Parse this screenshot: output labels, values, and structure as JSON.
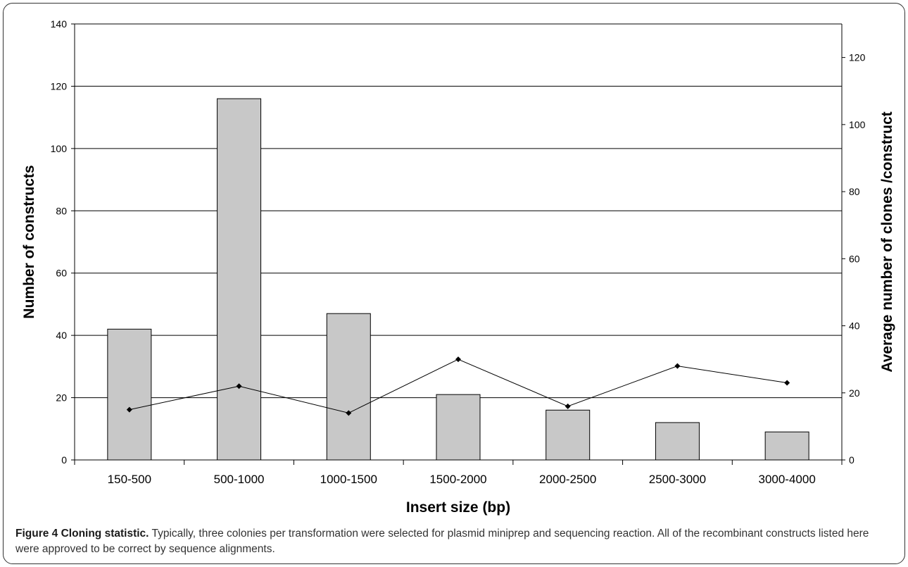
{
  "chart_data": {
    "type": "bar",
    "categories": [
      "150-500",
      "500-1000",
      "1000-1500",
      "1500-2000",
      "2000-2500",
      "2500-3000",
      "3000-4000"
    ],
    "series": [
      {
        "values": [
          42,
          116,
          47,
          21,
          16,
          12,
          9
        ],
        "axis": "left",
        "kind": "bar",
        "color": "#c8c8c8"
      },
      {
        "values": [
          15,
          22,
          14,
          30,
          16,
          28,
          23
        ],
        "axis": "right",
        "kind": "line",
        "color": "#000000"
      }
    ],
    "xlabel": "Insert size (bp)",
    "ylabel": "Number of constructs",
    "y2label": "Average number of clones /construct",
    "ylim": [
      0,
      140
    ],
    "y2lim": [
      0,
      130
    ],
    "yticks": [
      0,
      20,
      40,
      60,
      80,
      100,
      120,
      140
    ],
    "y2ticks": [
      0,
      20,
      40,
      60,
      80,
      100,
      120
    ],
    "grid": true,
    "legend": "none"
  },
  "caption": {
    "label": "Figure 4 Cloning statistic.",
    "text": " Typically, three colonies per transformation were selected for plasmid miniprep and sequencing reaction. All of the recombinant constructs listed here were approved to be correct by sequence alignments."
  }
}
